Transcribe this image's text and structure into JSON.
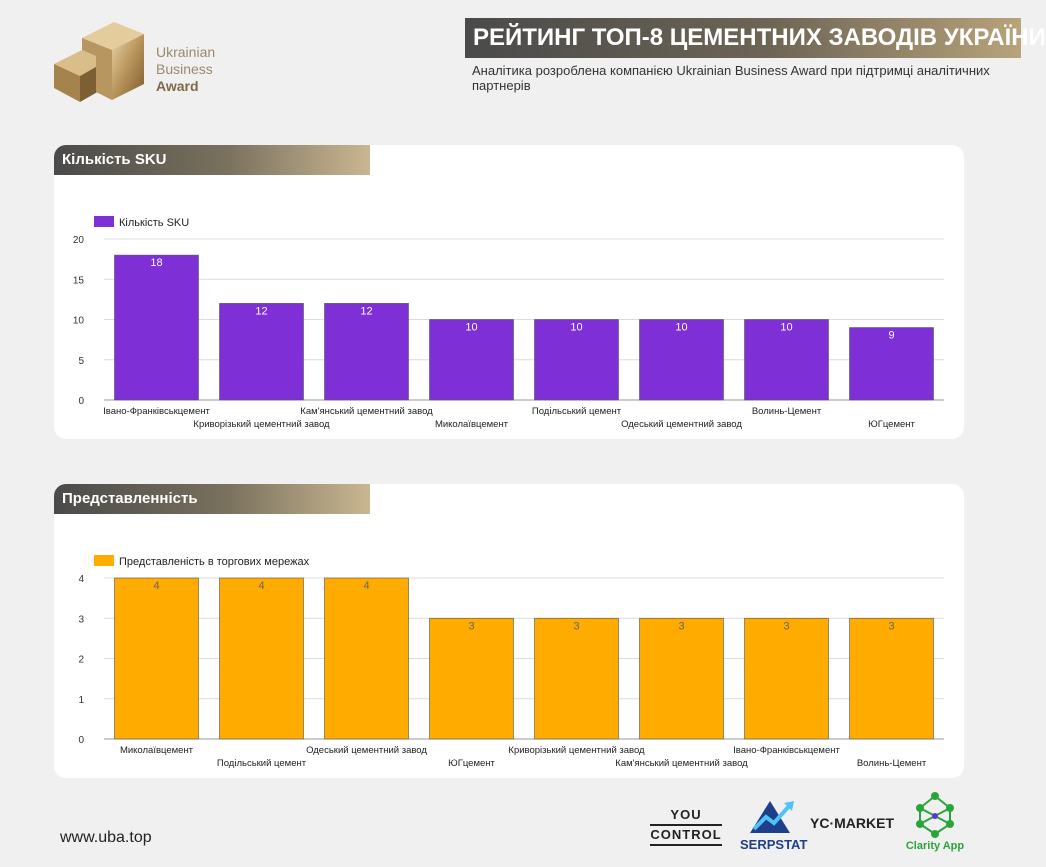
{
  "header": {
    "title": "РЕЙТИНГ ТОП-8 ЦЕМЕНТНИХ ЗАВОДІВ УКРАЇНИ",
    "subtitle": "Аналітика розроблена компанією Ukrainian Business Award при підтримці аналітичних партнерів"
  },
  "logo": {
    "line1": "Ukrainian",
    "line2": "Business",
    "line3": "Award"
  },
  "sections": {
    "sku_header": "Кількість SKU",
    "rep_header": "Представленність"
  },
  "chart_data": [
    {
      "type": "bar",
      "legend": "Кількість SKU",
      "categories": [
        "Івано-Франківськцемент",
        "Криворізький цементний завод",
        "Кам'янський цементний завод",
        "Миколаївцемент",
        "Подільський цемент",
        "Одеський цементний завод",
        "Волинь-Цемент",
        "ЮГцемент"
      ],
      "values": [
        18,
        12,
        12,
        10,
        10,
        10,
        10,
        9
      ],
      "ylim": [
        0,
        20
      ],
      "yticks": [
        0,
        5,
        10,
        15,
        20
      ],
      "color": "#7e2fd6",
      "legend_position": "top-left",
      "grid": true
    },
    {
      "type": "bar",
      "legend": "Представленість в торгових мережах",
      "categories": [
        "Миколаївцемент",
        "Подільський цемент",
        "Одеський цементний завод",
        "ЮГцемент",
        "Криворізький цементний завод",
        "Кам'янський цементний завод",
        "Івано-Франківськцемент",
        "Волинь-Цемент"
      ],
      "values": [
        4,
        4,
        4,
        3,
        3,
        3,
        3,
        3
      ],
      "ylim": [
        0,
        4
      ],
      "yticks": [
        0,
        1,
        2,
        3,
        4
      ],
      "color": "#ffab00",
      "legend_position": "top-left",
      "grid": true
    }
  ],
  "footer": {
    "url": "www.uba.top",
    "partners": {
      "youcontrol_1": "YOU",
      "youcontrol_2": "CONTROL",
      "serpstat": "SERPSTAT",
      "ycmarket": "YC·MARKET",
      "clarity": "Clarity App"
    }
  },
  "colors": {
    "sku_bar": "#7e2fd6",
    "rep_bar": "#ffab00",
    "clarity_green": "#2aa53a",
    "serpstat_blue": "#1e3f8a"
  }
}
